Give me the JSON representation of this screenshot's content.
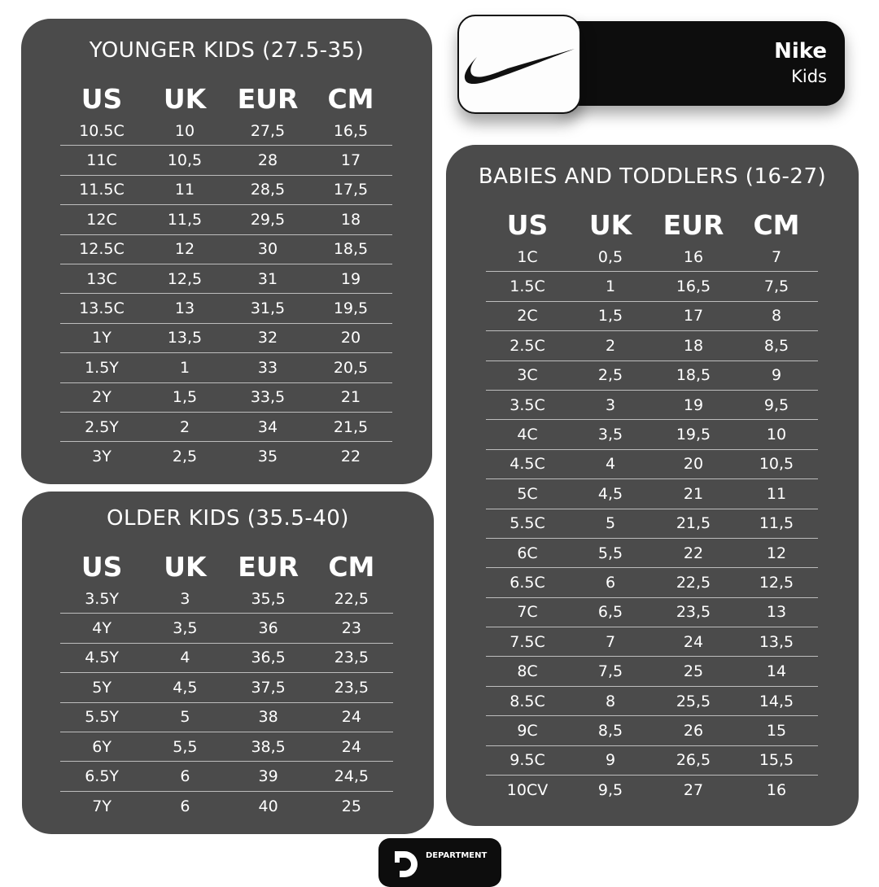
{
  "brand": {
    "name": "Nike",
    "subtitle": "Kids",
    "logo": "nike-swoosh"
  },
  "footer": {
    "logo_text": "DEPARTMENT"
  },
  "headers": [
    "US",
    "UK",
    "EUR",
    "CM"
  ],
  "tables": {
    "younger": {
      "title": "YOUNGER KIDS (27.5-35)",
      "rows": [
        [
          "10.5C",
          "10",
          "27,5",
          "16,5"
        ],
        [
          "11C",
          "10,5",
          "28",
          "17"
        ],
        [
          "11.5C",
          "11",
          "28,5",
          "17,5"
        ],
        [
          "12C",
          "11,5",
          "29,5",
          "18"
        ],
        [
          "12.5C",
          "12",
          "30",
          "18,5"
        ],
        [
          "13C",
          "12,5",
          "31",
          "19"
        ],
        [
          "13.5C",
          "13",
          "31,5",
          "19,5"
        ],
        [
          "1Y",
          "13,5",
          "32",
          "20"
        ],
        [
          "1.5Y",
          "1",
          "33",
          "20,5"
        ],
        [
          "2Y",
          "1,5",
          "33,5",
          "21"
        ],
        [
          "2.5Y",
          "2",
          "34",
          "21,5"
        ],
        [
          "3Y",
          "2,5",
          "35",
          "22"
        ]
      ]
    },
    "older": {
      "title": "OLDER KIDS (35.5-40)",
      "rows": [
        [
          "3.5Y",
          "3",
          "35,5",
          "22,5"
        ],
        [
          "4Y",
          "3,5",
          "36",
          "23"
        ],
        [
          "4.5Y",
          "4",
          "36,5",
          "23,5"
        ],
        [
          "5Y",
          "4,5",
          "37,5",
          "23,5"
        ],
        [
          "5.5Y",
          "5",
          "38",
          "24"
        ],
        [
          "6Y",
          "5,5",
          "38,5",
          "24"
        ],
        [
          "6.5Y",
          "6",
          "39",
          "24,5"
        ],
        [
          "7Y",
          "6",
          "40",
          "25"
        ]
      ]
    },
    "babies": {
      "title": "BABIES AND TODDLERS (16-27)",
      "rows": [
        [
          "1C",
          "0,5",
          "16",
          "7"
        ],
        [
          "1.5C",
          "1",
          "16,5",
          "7,5"
        ],
        [
          "2C",
          "1,5",
          "17",
          "8"
        ],
        [
          "2.5C",
          "2",
          "18",
          "8,5"
        ],
        [
          "3C",
          "2,5",
          "18,5",
          "9"
        ],
        [
          "3.5C",
          "3",
          "19",
          "9,5"
        ],
        [
          "4C",
          "3,5",
          "19,5",
          "10"
        ],
        [
          "4.5C",
          "4",
          "20",
          "10,5"
        ],
        [
          "5C",
          "4,5",
          "21",
          "11"
        ],
        [
          "5.5C",
          "5",
          "21,5",
          "11,5"
        ],
        [
          "6C",
          "5,5",
          "22",
          "12"
        ],
        [
          "6.5C",
          "6",
          "22,5",
          "12,5"
        ],
        [
          "7C",
          "6,5",
          "23,5",
          "13"
        ],
        [
          "7.5C",
          "7",
          "24",
          "13,5"
        ],
        [
          "8C",
          "7,5",
          "25",
          "14"
        ],
        [
          "8.5C",
          "8",
          "25,5",
          "14,5"
        ],
        [
          "9C",
          "8,5",
          "26",
          "15"
        ],
        [
          "9.5C",
          "9",
          "26,5",
          "15,5"
        ],
        [
          "10CV",
          "9,5",
          "27",
          "16"
        ]
      ]
    }
  }
}
